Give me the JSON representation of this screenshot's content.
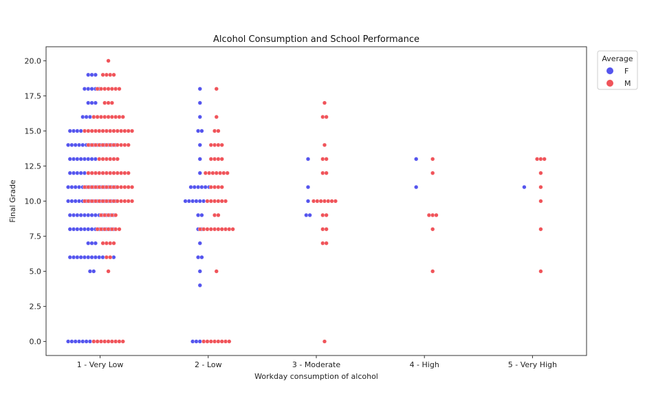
{
  "chart_data": {
    "type": "scatter",
    "subtype": "swarm",
    "title": "Alcohol Consumption and School Performance",
    "xlabel": "Workday consumption of alcohol",
    "ylabel": "Final Grade",
    "categories": [
      "1 - Very Low",
      "2 - Low",
      "3 - Moderate",
      "4 - High",
      "5 - Very High"
    ],
    "ylim": [
      -1,
      21
    ],
    "yticks": [
      "0.0",
      "2.5",
      "5.0",
      "7.5",
      "10.0",
      "12.5",
      "15.0",
      "17.5",
      "20.0"
    ],
    "legend": {
      "title": "Average",
      "position": "top-right-outside"
    },
    "grid": false,
    "series": [
      {
        "name": "F",
        "color": "#5555ee",
        "counts": [
          [
            [
              0,
              14
            ],
            [
              5,
              2
            ],
            [
              6,
              13
            ],
            [
              7,
              3
            ],
            [
              8,
              13
            ],
            [
              9,
              13
            ],
            [
              10,
              14
            ],
            [
              11,
              14
            ],
            [
              12,
              13
            ],
            [
              13,
              13
            ],
            [
              14,
              14
            ],
            [
              15,
              13
            ],
            [
              16,
              6
            ],
            [
              17,
              3
            ],
            [
              18,
              5
            ],
            [
              19,
              3
            ]
          ],
          [
            [
              0,
              5
            ],
            [
              4,
              1
            ],
            [
              5,
              1
            ],
            [
              6,
              2
            ],
            [
              7,
              1
            ],
            [
              8,
              2
            ],
            [
              9,
              2
            ],
            [
              10,
              9
            ],
            [
              11,
              6
            ],
            [
              12,
              1
            ],
            [
              13,
              1
            ],
            [
              14,
              1
            ],
            [
              15,
              2
            ],
            [
              16,
              1
            ],
            [
              17,
              1
            ],
            [
              18,
              1
            ]
          ],
          [
            [
              9,
              2
            ],
            [
              10,
              1
            ],
            [
              11,
              1
            ],
            [
              13,
              1
            ]
          ],
          [
            [
              11,
              1
            ],
            [
              13,
              1
            ]
          ],
          [
            [
              11,
              1
            ]
          ]
        ]
      },
      {
        "name": "M",
        "color": "#f0545a",
        "counts": [
          [
            [
              0,
              9
            ],
            [
              5,
              1
            ],
            [
              6,
              2
            ],
            [
              7,
              4
            ],
            [
              8,
              7
            ],
            [
              9,
              5
            ],
            [
              10,
              14
            ],
            [
              11,
              14
            ],
            [
              12,
              12
            ],
            [
              13,
              6
            ],
            [
              14,
              12
            ],
            [
              15,
              14
            ],
            [
              16,
              9
            ],
            [
              17,
              3
            ],
            [
              18,
              7
            ],
            [
              19,
              4
            ],
            [
              20,
              1
            ]
          ],
          [
            [
              0,
              8
            ],
            [
              5,
              1
            ],
            [
              8,
              10
            ],
            [
              9,
              2
            ],
            [
              10,
              6
            ],
            [
              11,
              4
            ],
            [
              12,
              7
            ],
            [
              13,
              4
            ],
            [
              14,
              4
            ],
            [
              15,
              2
            ],
            [
              16,
              1
            ],
            [
              18,
              1
            ]
          ],
          [
            [
              0,
              1
            ],
            [
              7,
              2
            ],
            [
              8,
              2
            ],
            [
              9,
              2
            ],
            [
              10,
              7
            ],
            [
              12,
              2
            ],
            [
              13,
              2
            ],
            [
              14,
              1
            ],
            [
              16,
              2
            ],
            [
              17,
              1
            ]
          ],
          [
            [
              5,
              1
            ],
            [
              8,
              1
            ],
            [
              9,
              3
            ],
            [
              12,
              1
            ],
            [
              13,
              1
            ]
          ],
          [
            [
              5,
              1
            ],
            [
              8,
              1
            ],
            [
              10,
              1
            ],
            [
              11,
              1
            ],
            [
              12,
              1
            ],
            [
              13,
              3
            ]
          ]
        ]
      }
    ]
  }
}
